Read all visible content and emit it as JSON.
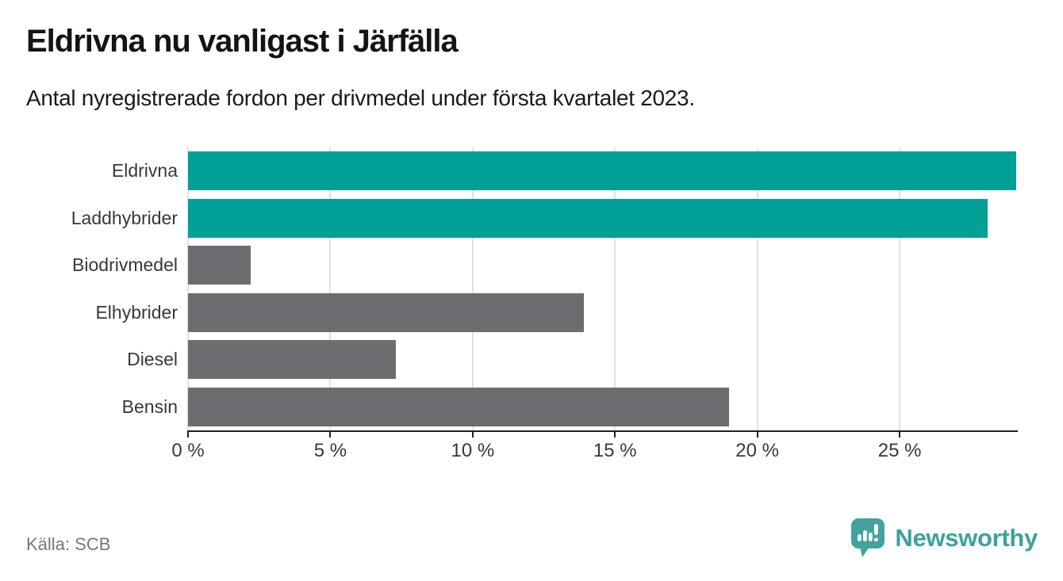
{
  "header": {
    "title": "Eldrivna nu vanligast i Järfälla",
    "subtitle": "Antal nyregistrerade fordon per drivmedel under första kvartalet 2023."
  },
  "footer": {
    "source": "Källa: SCB",
    "brand": "Newsworthy"
  },
  "palette": {
    "teal": "#00a096",
    "gray": "#6d6d71",
    "gridline": "#e2e2e2",
    "axis": "#222222",
    "text": "#383838",
    "brand_teal": "#3ba39b"
  },
  "chart_data": {
    "type": "bar",
    "orientation": "horizontal",
    "title": "Eldrivna nu vanligast i Järfälla",
    "subtitle": "Antal nyregistrerade fordon per drivmedel under första kvartalet 2023.",
    "categories": [
      "Eldrivna",
      "Laddhybrider",
      "Biodrivmedel",
      "Elhybrider",
      "Diesel",
      "Bensin"
    ],
    "values": [
      29.1,
      28.1,
      2.2,
      13.9,
      7.3,
      19.0
    ],
    "unit": "%",
    "bar_colors": [
      "teal",
      "teal",
      "gray",
      "gray",
      "gray",
      "gray"
    ],
    "xlabel": "",
    "ylabel": "",
    "xlim": [
      0,
      29.15
    ],
    "xticks": [
      0,
      5,
      10,
      15,
      20,
      25
    ],
    "xtick_labels": [
      "0 %",
      "5 %",
      "10 %",
      "15 %",
      "20 %",
      "25 %"
    ],
    "grid": "vertical",
    "legend": "none"
  }
}
